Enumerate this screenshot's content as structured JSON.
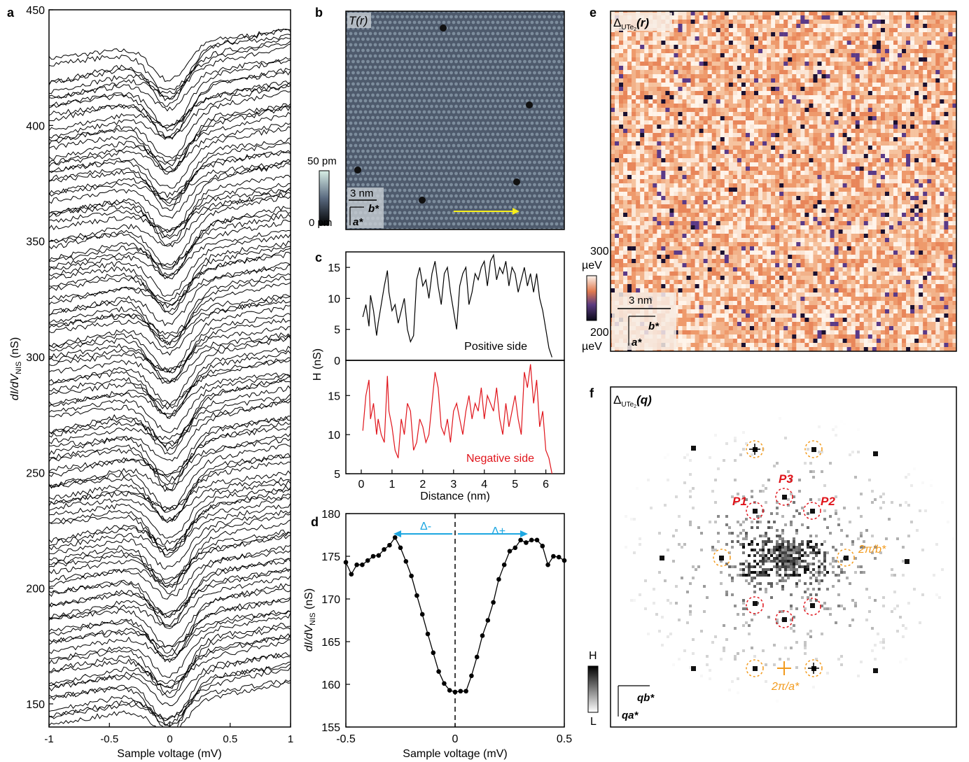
{
  "panel_labels": [
    "a",
    "b",
    "c",
    "d",
    "e",
    "f"
  ],
  "colors": {
    "trace_black": "#000000",
    "trace_red": "#e0141b",
    "arrow_blue": "#1ea7e1",
    "arrow_yellow": "#f7ee1a",
    "orange": "#f29a1c",
    "red_circle": "#e0141b"
  },
  "chart_data": [
    {
      "panel": "a",
      "type": "line",
      "description_note": "",
      "xlabel": "Sample voltage (mV)",
      "ylabel_main": "dI/dV",
      "ylabel_sub": "NIS",
      "ylabel_unit": " (nS)",
      "xlim": [
        -1,
        1
      ],
      "ylim": [
        140,
        450
      ],
      "xticks": [
        "-1",
        "-0.5",
        "0",
        "0.5",
        "1"
      ],
      "yticks": [
        "150",
        "200",
        "250",
        "300",
        "350",
        "400",
        "450"
      ],
      "n_traces": 120,
      "trace_offset_top": 435,
      "trace_offset_bottom": 150,
      "dip_depth": 22,
      "dip_width_mV": 0.28
    },
    {
      "panel": "b",
      "type": "heatmap",
      "title": "T(r)",
      "colorbar_max": "50 pm",
      "colorbar_min": "0 pm",
      "scale_bar": "3 nm",
      "axis_b": "b*",
      "axis_a": "a*",
      "arrow": "yellow"
    },
    {
      "panel": "c",
      "type": "line",
      "xlabel": "Distance (nm)",
      "ylabel": "H (nS)",
      "xlim": [
        -0.5,
        6.6
      ],
      "xticks": [
        "0",
        "1",
        "2",
        "3",
        "4",
        "5",
        "6"
      ],
      "series": [
        {
          "name": "Positive side",
          "color": "#000000",
          "ylim": [
            0,
            17.5
          ],
          "yticks": [
            "0",
            "5",
            "10",
            "15"
          ],
          "x": [
            0.05,
            0.15,
            0.25,
            0.3,
            0.4,
            0.5,
            0.55,
            0.65,
            0.75,
            0.85,
            0.9,
            1.0,
            1.1,
            1.2,
            1.3,
            1.4,
            1.5,
            1.6,
            1.7,
            1.8,
            1.9,
            2.0,
            2.1,
            2.2,
            2.3,
            2.4,
            2.5,
            2.6,
            2.7,
            2.8,
            2.9,
            3.0,
            3.1,
            3.2,
            3.3,
            3.4,
            3.5,
            3.6,
            3.7,
            3.8,
            3.9,
            4.0,
            4.1,
            4.2,
            4.3,
            4.4,
            4.5,
            4.6,
            4.7,
            4.8,
            4.9,
            5.0,
            5.1,
            5.2,
            5.3,
            5.4,
            5.5,
            5.6,
            5.7,
            5.8,
            5.9,
            6.0,
            6.1,
            6.2
          ],
          "y": [
            7,
            9,
            5.5,
            10.5,
            8,
            4,
            6,
            9,
            12,
            14.5,
            11,
            8,
            9,
            6,
            8,
            10,
            5,
            3,
            4,
            13,
            15,
            12,
            13,
            10,
            14,
            16,
            12,
            9,
            14,
            15,
            11,
            8,
            5,
            12,
            14,
            15,
            9,
            11,
            14,
            13,
            15,
            16,
            12,
            16,
            17,
            13,
            15,
            14,
            16,
            12,
            15,
            14,
            11,
            13,
            15,
            12,
            14,
            11,
            14,
            10,
            8,
            5,
            2,
            0.5
          ]
        },
        {
          "name": "Negative side",
          "color": "#e0141b",
          "ylim": [
            5,
            19.5
          ],
          "yticks": [
            "5",
            "10",
            "15"
          ],
          "x": [
            0.05,
            0.15,
            0.25,
            0.3,
            0.4,
            0.5,
            0.55,
            0.65,
            0.75,
            0.85,
            0.9,
            1.0,
            1.1,
            1.2,
            1.3,
            1.4,
            1.5,
            1.6,
            1.7,
            1.8,
            1.9,
            2.0,
            2.1,
            2.2,
            2.3,
            2.4,
            2.5,
            2.6,
            2.7,
            2.8,
            2.9,
            3.0,
            3.1,
            3.2,
            3.3,
            3.4,
            3.5,
            3.6,
            3.7,
            3.8,
            3.9,
            4.0,
            4.1,
            4.2,
            4.3,
            4.4,
            4.5,
            4.6,
            4.7,
            4.8,
            4.9,
            5.0,
            5.1,
            5.2,
            5.3,
            5.4,
            5.5,
            5.6,
            5.7,
            5.8,
            5.9,
            6.0,
            6.1,
            6.2
          ],
          "y": [
            10.5,
            15,
            17,
            12,
            14,
            10,
            12,
            10,
            9,
            17.5,
            13,
            11,
            8,
            7,
            12,
            10,
            14,
            13,
            8,
            9,
            12,
            11,
            9,
            10,
            14,
            18,
            16,
            11,
            10,
            12,
            9,
            13,
            14,
            12,
            10,
            13,
            15,
            12,
            14,
            13,
            16,
            12,
            15,
            14,
            13,
            16,
            12,
            10,
            14,
            11,
            13,
            15,
            12,
            10,
            18,
            16,
            19,
            14,
            17,
            11,
            13,
            8,
            7,
            5
          ]
        }
      ]
    },
    {
      "panel": "d",
      "type": "line",
      "xlabel": "Sample voltage (mV)",
      "ylabel_main": "dI/dV",
      "ylabel_sub": "NIS",
      "ylabel_unit": " (nS)",
      "xlim": [
        -0.5,
        0.5
      ],
      "ylim": [
        155,
        180
      ],
      "xticks": [
        "-0.5",
        "0",
        "0.5"
      ],
      "yticks": [
        "155",
        "160",
        "165",
        "170",
        "175",
        "180"
      ],
      "x": [
        -0.5,
        -0.475,
        -0.45,
        -0.425,
        -0.4,
        -0.375,
        -0.35,
        -0.325,
        -0.3,
        -0.275,
        -0.25,
        -0.225,
        -0.2,
        -0.175,
        -0.15,
        -0.125,
        -0.1,
        -0.075,
        -0.05,
        -0.025,
        0,
        0.025,
        0.05,
        0.075,
        0.1,
        0.125,
        0.15,
        0.175,
        0.2,
        0.225,
        0.25,
        0.275,
        0.3,
        0.325,
        0.35,
        0.375,
        0.4,
        0.425,
        0.45,
        0.475,
        0.5
      ],
      "y": [
        174.3,
        172.9,
        174,
        174,
        174.5,
        175,
        175.1,
        175.8,
        176.3,
        177.2,
        176,
        174.4,
        172.7,
        170.4,
        168.2,
        165.9,
        163.7,
        161.5,
        160.1,
        159.3,
        159.1,
        159.2,
        159.2,
        161,
        163.2,
        165.7,
        167.5,
        169.6,
        172.3,
        174,
        175.6,
        176,
        176.9,
        176.6,
        176.9,
        176.9,
        176.2,
        174,
        175,
        174.9,
        174.5
      ],
      "gap_minus": "Δ-",
      "gap_plus": "Δ+"
    },
    {
      "panel": "e",
      "type": "heatmap",
      "title_main": "Δ",
      "title_sub": "UTe",
      "title_sub2": "2",
      "title_arg": "(r)",
      "colorbar_max": "300",
      "colorbar_max_unit": "µeV",
      "colorbar_min": "200",
      "colorbar_min_unit": "µeV",
      "scale_bar": "3 nm",
      "axis_b": "b*",
      "axis_a": "a*"
    },
    {
      "panel": "f",
      "type": "heatmap",
      "title_main": "Δ",
      "title_sub": "UTe",
      "title_sub2": "2",
      "title_arg": "(q)",
      "peaks": [
        "P1",
        "P2",
        "P3"
      ],
      "bragg_b": "2π/b*",
      "bragg_a": "2π/a*",
      "colorbar_max": "H",
      "colorbar_min": "L",
      "axis_qb": "qb*",
      "axis_qa": "qa*"
    }
  ]
}
